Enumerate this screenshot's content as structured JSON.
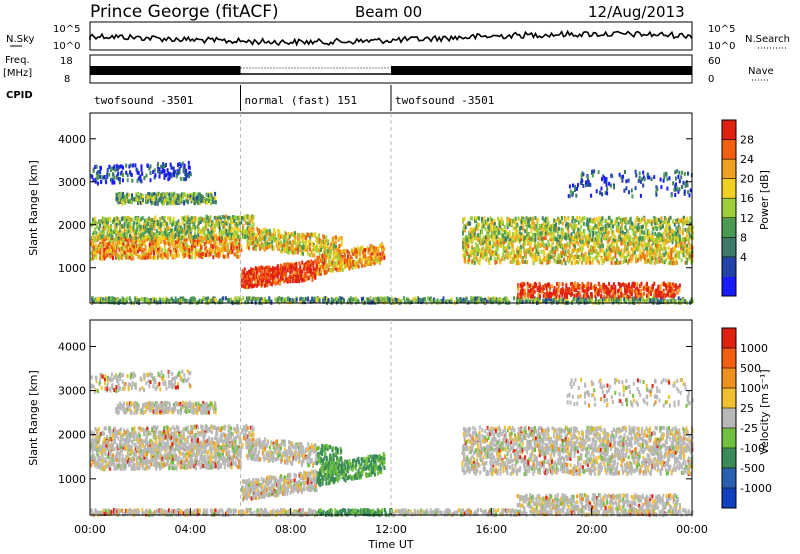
{
  "header": {
    "station": "Prince George (fitACF)",
    "beam": "Beam 00",
    "date": "12/Aug/2013"
  },
  "strips": {
    "nsky_label": "N.Sky",
    "nsky_ticks": [
      "10^5",
      "10^0"
    ],
    "nsearch_label": "N.Search",
    "freq_label_1": "Freq.",
    "freq_label_2": "[MHz]",
    "freq_ticks": [
      "18",
      "8"
    ],
    "nave_label": "Nave",
    "nave_ticks": [
      "60",
      "0"
    ],
    "cpid_label": "CPID"
  },
  "cpid_segments": [
    {
      "label": "twofsound -3501",
      "start": 0,
      "end": 6
    },
    {
      "label": "normal (fast) 151",
      "start": 6,
      "end": 12
    },
    {
      "label": "twofsound -3501",
      "start": 12,
      "end": 24
    }
  ],
  "colors": {
    "power_scale": [
      "#1a1aff",
      "#2244aa",
      "#3d7a6a",
      "#4a9a52",
      "#9ccf3a",
      "#f0d020",
      "#f0a020",
      "#f06010",
      "#e02010"
    ],
    "velocity_scale": [
      "#1040c0",
      "#2a60b0",
      "#3a8a5a",
      "#70c040",
      "#b8b8b8",
      "#f0c030",
      "#f09020",
      "#f06010",
      "#e02010"
    ]
  },
  "chart_data": [
    {
      "type": "heatmap",
      "name": "power",
      "xlabel": "",
      "ylabel": "Slant Range [km]",
      "xlim": [
        0,
        24
      ],
      "ylim": [
        180,
        4600
      ],
      "yticks": [
        "4000",
        "3000",
        "2000",
        "1000"
      ],
      "colorbar_label": "Power [dB]",
      "colorbar_ticks": [
        "28",
        "24",
        "20",
        "16",
        "12",
        "8",
        "4"
      ],
      "colorbar_range": [
        0,
        32
      ]
    },
    {
      "type": "heatmap",
      "name": "velocity",
      "xlabel": "Time UT",
      "ylabel": "Slant Range [km]",
      "xlim": [
        0,
        24
      ],
      "ylim": [
        180,
        4600
      ],
      "xticks": [
        "00:00",
        "04:00",
        "08:00",
        "12:00",
        "16:00",
        "20:00",
        "00:00"
      ],
      "yticks": [
        "4000",
        "3000",
        "2000",
        "1000"
      ],
      "colorbar_label": "Velocity [m s⁻¹]",
      "colorbar_ticks": [
        "1000",
        "500",
        "100",
        "25",
        "-25",
        "-100",
        "-500",
        "-1000"
      ]
    }
  ]
}
